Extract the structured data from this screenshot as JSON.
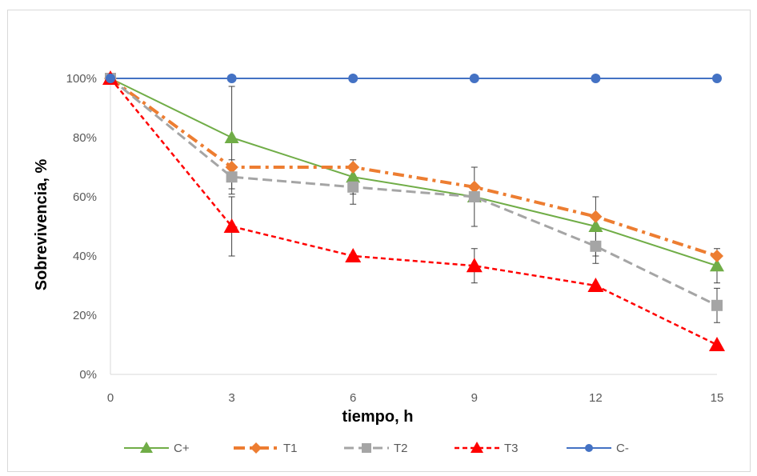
{
  "chart_data": {
    "type": "line",
    "title": "",
    "xlabel": "tiempo, h",
    "ylabel": "Sobrevivencia, %",
    "x": [
      0,
      3,
      6,
      9,
      12,
      15
    ],
    "xticks": [
      "0",
      "3",
      "6",
      "9",
      "12",
      "15"
    ],
    "xlim": [
      0,
      15
    ],
    "ylim": [
      0,
      1
    ],
    "yticks": [
      {
        "value": 0,
        "label": "0%"
      },
      {
        "value": 0.2,
        "label": "20%"
      },
      {
        "value": 0.4,
        "label": "40%"
      },
      {
        "value": 0.6,
        "label": "60%"
      },
      {
        "value": 0.8,
        "label": "80%"
      },
      {
        "value": 1.0,
        "label": "100%"
      }
    ],
    "grid": false,
    "legend_position": "bottom",
    "series": [
      {
        "name": "C+",
        "color": "#70ad47",
        "dash": "solid",
        "marker": "triangle",
        "values": [
          1.0,
          0.8,
          0.667,
          0.6,
          0.5,
          0.367
        ],
        "errors": [
          0,
          0.173,
          0.058,
          0.1,
          0.1,
          0.058
        ]
      },
      {
        "name": "T1",
        "color": "#ed7d31",
        "dash": "dashdot",
        "marker": "diamond",
        "values": [
          1.0,
          0.7,
          0.7,
          0.633,
          0.533,
          0.4
        ],
        "errors": [
          0,
          0,
          0,
          0,
          0,
          0
        ]
      },
      {
        "name": "T2",
        "color": "#a5a5a5",
        "dash": "dashed",
        "marker": "square",
        "values": [
          1.0,
          0.667,
          0.633,
          0.6,
          0.433,
          0.233
        ],
        "errors": [
          0,
          0.058,
          0.058,
          0,
          0.058,
          0.058
        ]
      },
      {
        "name": "T3",
        "color": "#ff0000",
        "dash": "dotted",
        "marker": "triangle",
        "values": [
          1.0,
          0.5,
          0.4,
          0.367,
          0.3,
          0.1
        ],
        "errors": [
          0,
          0.1,
          0,
          0.058,
          0,
          0
        ]
      },
      {
        "name": "C-",
        "color": "#4472c4",
        "dash": "solid",
        "marker": "circle",
        "values": [
          1.0,
          1.0,
          1.0,
          1.0,
          1.0,
          1.0
        ],
        "errors": [
          0,
          0,
          0,
          0,
          0,
          0
        ]
      }
    ]
  }
}
